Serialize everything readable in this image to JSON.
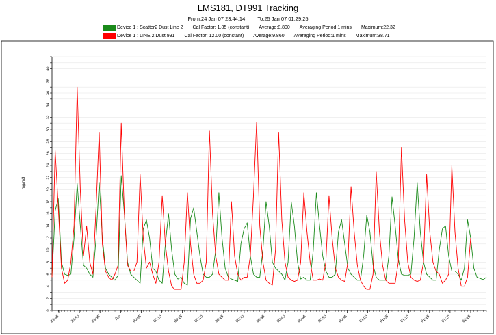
{
  "header": {
    "title": "LMS181, DT991 Tracking",
    "from_label": "From:24 Jan 07  23:44:14",
    "to_label": "To:25 Jan 07  01:29:25"
  },
  "legend": [
    {
      "name": "Device 1 : Scatter2 Dust Line 2",
      "cal": "Cal Factor: 1.85 (constant)",
      "avg": "Average:8.800",
      "period": "Averaging Period:1 mins",
      "max": "Maximum:22.32",
      "color": "#1a8a1a"
    },
    {
      "name": "Device 1 : LINE 2 Dust 991",
      "cal": "Cal Factor: 12.00 (constant)",
      "avg": "Average:9.860",
      "period": "Averaging Period:1 mins",
      "max": "Maximum:38.71",
      "color": "#ff0000"
    }
  ],
  "chart_data": {
    "type": "line",
    "ylabel": "mg/m3",
    "ylim": [
      0,
      42
    ],
    "yticks": [
      0,
      2,
      4,
      6,
      8,
      10,
      12,
      14,
      16,
      18,
      20,
      22,
      24,
      26,
      28,
      30,
      32,
      34,
      36,
      38,
      40
    ],
    "xticks": [
      "23:45",
      "23:50",
      "23:55",
      "Jan",
      "00:05",
      "00:10",
      "00:15",
      "00:20",
      "00:25",
      "00:30",
      "00:35",
      "00:40",
      "00:45",
      "00:50",
      "00:55",
      "01:00",
      "01:05",
      "01:10",
      "01:15",
      "01:20",
      "01:25"
    ],
    "grid": true,
    "series": [
      {
        "name": "Device 1 : Scatter2 Dust Line 2",
        "color": "#1a8a1a",
        "values": [
          5.5,
          16.5,
          18.5,
          8,
          6,
          5.8,
          6,
          12,
          21,
          14,
          7.5,
          7,
          6,
          5.5,
          12,
          21.2,
          12,
          7,
          6,
          5.5,
          5,
          5.8,
          22.3,
          16,
          8,
          6,
          5.5,
          5,
          4.5,
          13.5,
          15,
          12,
          7,
          6.5,
          5,
          4.5,
          11,
          16,
          10,
          6,
          5.2,
          5.5,
          4.5,
          4.2,
          15.2,
          17,
          13,
          9,
          6,
          5.5,
          5.5,
          6,
          10,
          19.5,
          12,
          7,
          5.5,
          5.2,
          5,
          4.8,
          11,
          13.5,
          14.5,
          9,
          6,
          5.5,
          5.5,
          10,
          18,
          14,
          8,
          7,
          6.5,
          6,
          5,
          8,
          18,
          14,
          8,
          5.2,
          5.5,
          5,
          5,
          10,
          19.5,
          14,
          9,
          6.5,
          5.5,
          5.5,
          6,
          13,
          15,
          11,
          7,
          6,
          5.5,
          5,
          5,
          9,
          15.8,
          13,
          7.5,
          5.5,
          5,
          5,
          5,
          9,
          18.8,
          14,
          8.5,
          6,
          5.8,
          5.8,
          6,
          12,
          21.2,
          13,
          8,
          6,
          5.5,
          5,
          5,
          10,
          13.5,
          14,
          9,
          6.5,
          6.5,
          6,
          5,
          7,
          15,
          12,
          7,
          5.5,
          5.3,
          5.1,
          5.5
        ]
      },
      {
        "name": "Device 1 : LINE 2 Dust 991",
        "color": "#ff0000",
        "values": [
          5.5,
          26.5,
          17,
          7,
          4.5,
          5,
          8,
          14,
          37,
          20,
          9,
          14,
          8,
          6,
          17,
          29.5,
          11,
          6.5,
          5.5,
          5,
          6,
          7.5,
          31,
          16,
          7.5,
          6.5,
          6.5,
          8,
          22.5,
          12,
          7,
          8,
          6,
          4.5,
          8,
          19,
          11,
          6.5,
          4,
          3.5,
          3.5,
          3.5,
          8,
          19.5,
          11,
          6,
          4.5,
          4.5,
          5,
          8,
          29.8,
          16,
          9,
          6,
          5.5,
          5,
          5,
          18,
          9,
          6,
          5,
          5.5,
          5.5,
          9,
          19,
          31.2,
          14,
          8,
          5,
          4.5,
          4.2,
          10,
          29.5,
          15,
          8,
          5.5,
          5,
          4.8,
          5,
          8,
          19.5,
          13,
          8,
          5,
          5,
          5.2,
          5,
          8,
          19,
          12,
          7,
          5.5,
          5,
          4.8,
          8,
          20.5,
          13,
          7.5,
          5,
          4,
          3.5,
          3.5,
          6,
          23,
          13,
          7.5,
          5,
          4.5,
          4.5,
          4.5,
          8,
          27,
          15,
          8,
          5.5,
          5,
          4.8,
          5,
          8,
          22.5,
          13,
          8,
          6.5,
          6,
          4.5,
          5,
          6,
          24,
          13,
          7,
          4,
          4,
          5.5,
          12
        ]
      }
    ]
  }
}
